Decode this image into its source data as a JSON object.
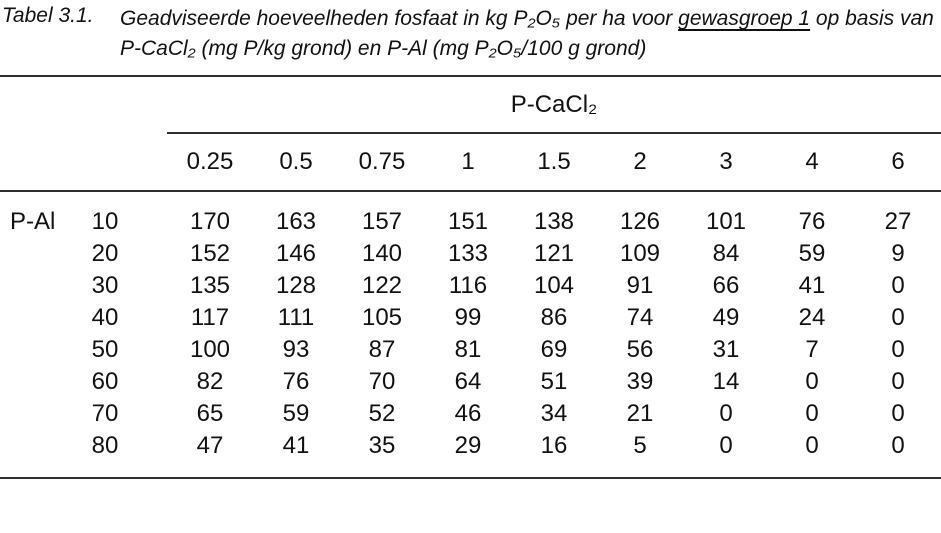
{
  "caption": {
    "label": "Tabel 3.1.",
    "line1_pre": "Geadviseerde hoeveelheden fosfaat in kg P₂O₅ per ha voor ",
    "line1_underlined": "gewasgroep 1",
    "line1_post": " op basis van",
    "line2": "P-CaCl₂ (mg P/kg grond) en P-Al (mg P₂O₅/100 g grond)"
  },
  "table": {
    "col_group_header": "P-CaCl₂",
    "row_group_header": "P-Al",
    "column_headers": [
      "0.25",
      "0.5",
      "0.75",
      "1",
      "1.5",
      "2",
      "3",
      "4",
      "6"
    ],
    "rows": [
      {
        "p_al": "10",
        "values": [
          "170",
          "163",
          "157",
          "151",
          "138",
          "126",
          "101",
          "76",
          "27"
        ]
      },
      {
        "p_al": "20",
        "values": [
          "152",
          "146",
          "140",
          "133",
          "121",
          "109",
          "84",
          "59",
          "9"
        ]
      },
      {
        "p_al": "30",
        "values": [
          "135",
          "128",
          "122",
          "116",
          "104",
          "91",
          "66",
          "41",
          "0"
        ]
      },
      {
        "p_al": "40",
        "values": [
          "117",
          "111",
          "105",
          "99",
          "86",
          "74",
          "49",
          "24",
          "0"
        ]
      },
      {
        "p_al": "50",
        "values": [
          "100",
          "93",
          "87",
          "81",
          "69",
          "56",
          "31",
          "7",
          "0"
        ]
      },
      {
        "p_al": "60",
        "values": [
          "82",
          "76",
          "70",
          "64",
          "51",
          "39",
          "14",
          "0",
          "0"
        ]
      },
      {
        "p_al": "70",
        "values": [
          "65",
          "59",
          "52",
          "46",
          "34",
          "21",
          "0",
          "0",
          "0"
        ]
      },
      {
        "p_al": "80",
        "values": [
          "47",
          "41",
          "35",
          "29",
          "16",
          "5",
          "0",
          "0",
          "0"
        ]
      }
    ]
  },
  "colors": {
    "text": "#111111",
    "rule": "#2f2f2f",
    "background": "#ffffff"
  }
}
